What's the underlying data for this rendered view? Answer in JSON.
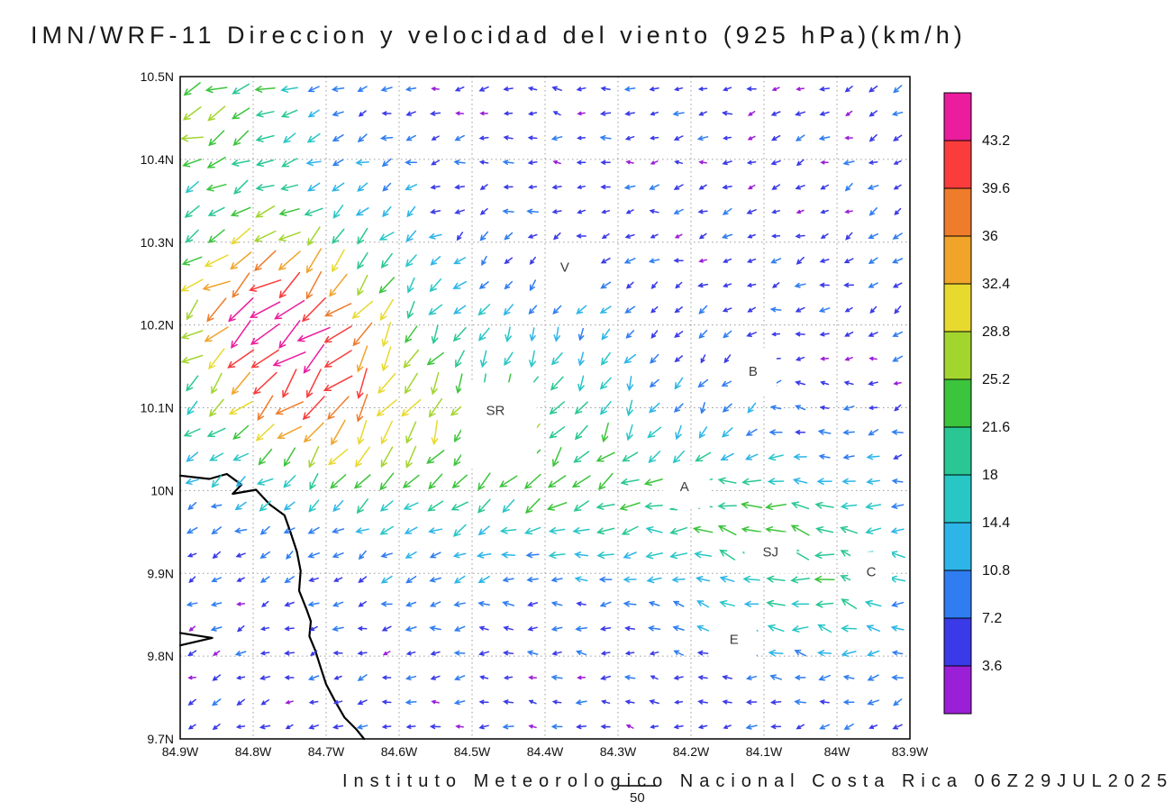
{
  "chart_data": {
    "type": "vector_field",
    "title": "IMN/WRF-11 Direccion y velocidad del viento (925 hPa)(km/h)",
    "footer": "Instituto Meteorologico Nacional Costa Rica 06Z29JUL2025",
    "reference_vector_label": "50",
    "variable": "wind direction and speed",
    "level": "925 hPa",
    "units": "km/h",
    "x_axis": {
      "ticks": [
        "84.9W",
        "84.8W",
        "84.7W",
        "84.6W",
        "84.5W",
        "84.4W",
        "84.3W",
        "84.2W",
        "84.1W",
        "84W",
        "83.9W"
      ],
      "range": [
        84.9,
        83.9
      ]
    },
    "y_axis": {
      "ticks": [
        "10.5N",
        "10.4N",
        "10.3N",
        "10.2N",
        "10.1N",
        "10N",
        "9.9N",
        "9.8N",
        "9.7N"
      ],
      "range": [
        10.5,
        9.7
      ]
    },
    "colorbar": {
      "position": "right",
      "levels": [
        3.6,
        7.2,
        10.8,
        14.4,
        18,
        21.6,
        25.2,
        28.8,
        32.4,
        36,
        39.6,
        43.2
      ],
      "colors": [
        "#9C1FD8",
        "#3A3AE8",
        "#2F7DF0",
        "#2EB5E8",
        "#29C6C6",
        "#2AC795",
        "#3CC43C",
        "#A3D52F",
        "#E8D92E",
        "#F0A42A",
        "#EF7C2B",
        "#FA3C3C",
        "#EC1C9E"
      ]
    },
    "stations": [
      {
        "label": "V",
        "lon": 84.373,
        "lat": 10.27,
        "mask": [
          46,
          50,
          2,
          1
        ]
      },
      {
        "label": "SR",
        "lon": 84.468,
        "lat": 10.097,
        "mask": [
          84,
          96,
          4,
          17
        ]
      },
      {
        "label": "B",
        "lon": 84.115,
        "lat": 10.144,
        "mask": [
          50,
          54,
          1,
          1
        ]
      },
      {
        "label": "A",
        "lon": 84.209,
        "lat": 10.005,
        "mask": [
          52,
          48,
          2,
          0
        ]
      },
      {
        "label": "SJ",
        "lon": 84.091,
        "lat": 9.926,
        "mask": [
          58,
          46,
          0,
          1
        ]
      },
      {
        "label": "C",
        "lon": 83.953,
        "lat": 9.902,
        "mask": [
          46,
          46,
          0,
          1
        ]
      },
      {
        "label": "E",
        "lon": 84.141,
        "lat": 9.82,
        "mask": [
          50,
          58,
          0,
          5
        ]
      }
    ],
    "coastlines": [
      [
        [
          84.9,
          10.018
        ],
        [
          84.86,
          10.014
        ],
        [
          84.836,
          10.02
        ],
        [
          84.816,
          10.007
        ],
        [
          84.828,
          9.996
        ],
        [
          84.796,
          10.001
        ],
        [
          84.777,
          9.983
        ],
        [
          84.757,
          9.97
        ],
        [
          84.749,
          9.95
        ],
        [
          84.74,
          9.926
        ],
        [
          84.735,
          9.903
        ],
        [
          84.737,
          9.879
        ],
        [
          84.727,
          9.857
        ],
        [
          84.721,
          9.842
        ],
        [
          84.723,
          9.824
        ],
        [
          84.715,
          9.807
        ],
        [
          84.707,
          9.785
        ],
        [
          84.7,
          9.766
        ],
        [
          84.688,
          9.746
        ],
        [
          84.675,
          9.726
        ],
        [
          84.658,
          9.711
        ],
        [
          84.648,
          9.7
        ]
      ],
      [
        [
          84.9,
          9.828
        ],
        [
          84.856,
          9.822
        ],
        [
          84.9,
          9.813
        ]
      ]
    ],
    "vector_grid": {
      "nx": 30,
      "ny": 27,
      "ref_speed_kmh": 50
    }
  }
}
